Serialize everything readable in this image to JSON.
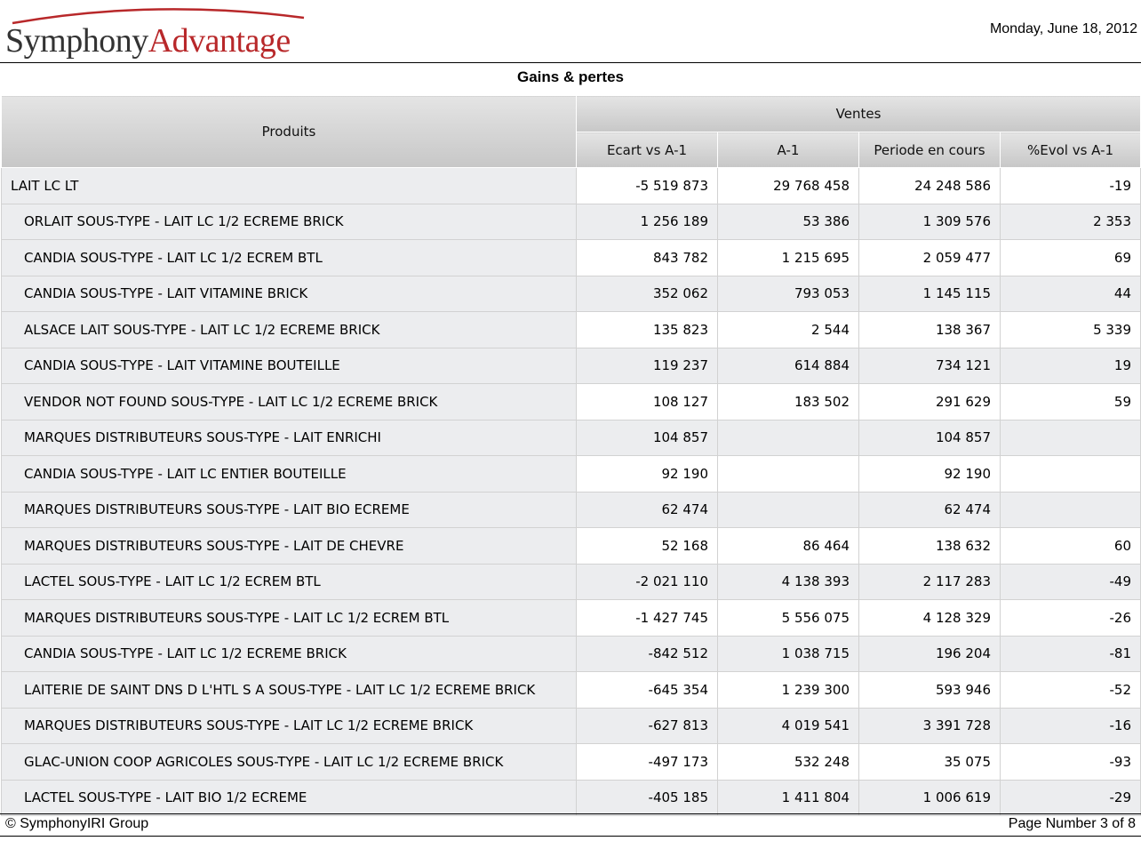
{
  "header": {
    "logo_part1": "Symphony",
    "logo_part2": "Advantage",
    "date": "Monday, June 18, 2012"
  },
  "report": {
    "title": "Gains & pertes"
  },
  "table": {
    "col_products": "Produits",
    "group_label": "Ventes",
    "columns": [
      "Ecart vs A-1",
      "A-1",
      "Periode en cours",
      "%Evol vs A-1"
    ],
    "rows": [
      {
        "name": "LAIT LC LT",
        "level": 0,
        "ecart": "-5 519 873",
        "a1": "29 768 458",
        "periode": "24 248 586",
        "evol": "-19"
      },
      {
        "name": "ORLAIT SOUS-TYPE - LAIT LC 1/2 ECREME BRICK",
        "level": 1,
        "ecart": "1 256 189",
        "a1": "53 386",
        "periode": "1 309 576",
        "evol": "2 353"
      },
      {
        "name": "CANDIA SOUS-TYPE - LAIT LC 1/2 ECREM BTL",
        "level": 1,
        "ecart": "843 782",
        "a1": "1 215 695",
        "periode": "2 059 477",
        "evol": "69"
      },
      {
        "name": "CANDIA SOUS-TYPE - LAIT VITAMINE BRICK",
        "level": 1,
        "ecart": "352 062",
        "a1": "793 053",
        "periode": "1 145 115",
        "evol": "44"
      },
      {
        "name": "ALSACE LAIT SOUS-TYPE - LAIT LC 1/2 ECREME BRICK",
        "level": 1,
        "ecart": "135 823",
        "a1": "2 544",
        "periode": "138 367",
        "evol": "5 339"
      },
      {
        "name": "CANDIA SOUS-TYPE - LAIT VITAMINE BOUTEILLE",
        "level": 1,
        "ecart": "119 237",
        "a1": "614 884",
        "periode": "734 121",
        "evol": "19"
      },
      {
        "name": "VENDOR NOT FOUND SOUS-TYPE - LAIT LC 1/2 ECREME BRICK",
        "level": 1,
        "ecart": "108 127",
        "a1": "183 502",
        "periode": "291 629",
        "evol": "59"
      },
      {
        "name": "MARQUES DISTRIBUTEURS SOUS-TYPE - LAIT ENRICHI",
        "level": 1,
        "ecart": "104 857",
        "a1": "",
        "periode": "104 857",
        "evol": ""
      },
      {
        "name": "CANDIA SOUS-TYPE - LAIT LC ENTIER BOUTEILLE",
        "level": 1,
        "ecart": "92 190",
        "a1": "",
        "periode": "92 190",
        "evol": ""
      },
      {
        "name": "MARQUES DISTRIBUTEURS SOUS-TYPE - LAIT BIO ECREME",
        "level": 1,
        "ecart": "62 474",
        "a1": "",
        "periode": "62 474",
        "evol": ""
      },
      {
        "name": "MARQUES DISTRIBUTEURS SOUS-TYPE - LAIT DE CHEVRE",
        "level": 1,
        "ecart": "52 168",
        "a1": "86 464",
        "periode": "138 632",
        "evol": "60"
      },
      {
        "name": "LACTEL SOUS-TYPE - LAIT LC 1/2 ECREM BTL",
        "level": 1,
        "ecart": "-2 021 110",
        "a1": "4 138 393",
        "periode": "2 117 283",
        "evol": "-49"
      },
      {
        "name": "MARQUES DISTRIBUTEURS SOUS-TYPE - LAIT LC 1/2 ECREM BTL",
        "level": 1,
        "ecart": "-1 427 745",
        "a1": "5 556 075",
        "periode": "4 128 329",
        "evol": "-26"
      },
      {
        "name": "CANDIA SOUS-TYPE - LAIT LC 1/2 ECREME BRICK",
        "level": 1,
        "ecart": "-842 512",
        "a1": "1 038 715",
        "periode": "196 204",
        "evol": "-81"
      },
      {
        "name": "LAITERIE DE SAINT DNS D L'HTL S A SOUS-TYPE - LAIT LC 1/2 ECREME BRICK",
        "level": 1,
        "ecart": "-645 354",
        "a1": "1 239 300",
        "periode": "593 946",
        "evol": "-52"
      },
      {
        "name": "MARQUES DISTRIBUTEURS SOUS-TYPE - LAIT LC 1/2 ECREME BRICK",
        "level": 1,
        "ecart": "-627 813",
        "a1": "4 019 541",
        "periode": "3 391 728",
        "evol": "-16"
      },
      {
        "name": "GLAC-UNION COOP AGRICOLES SOUS-TYPE - LAIT LC 1/2 ECREME BRICK",
        "level": 1,
        "ecart": "-497 173",
        "a1": "532 248",
        "periode": "35 075",
        "evol": "-93"
      },
      {
        "name": "LACTEL SOUS-TYPE - LAIT BIO 1/2 ECREME",
        "level": 1,
        "ecart": "-405 185",
        "a1": "1 411 804",
        "periode": "1 006 619",
        "evol": "-29"
      }
    ]
  },
  "footer": {
    "copyright": "© SymphonyIRI Group",
    "page": "Page Number 3 of 8"
  },
  "colors": {
    "brand_red": "#b8282a",
    "header_gray": "#c7c7c7",
    "row_alt": "#ecedef"
  }
}
